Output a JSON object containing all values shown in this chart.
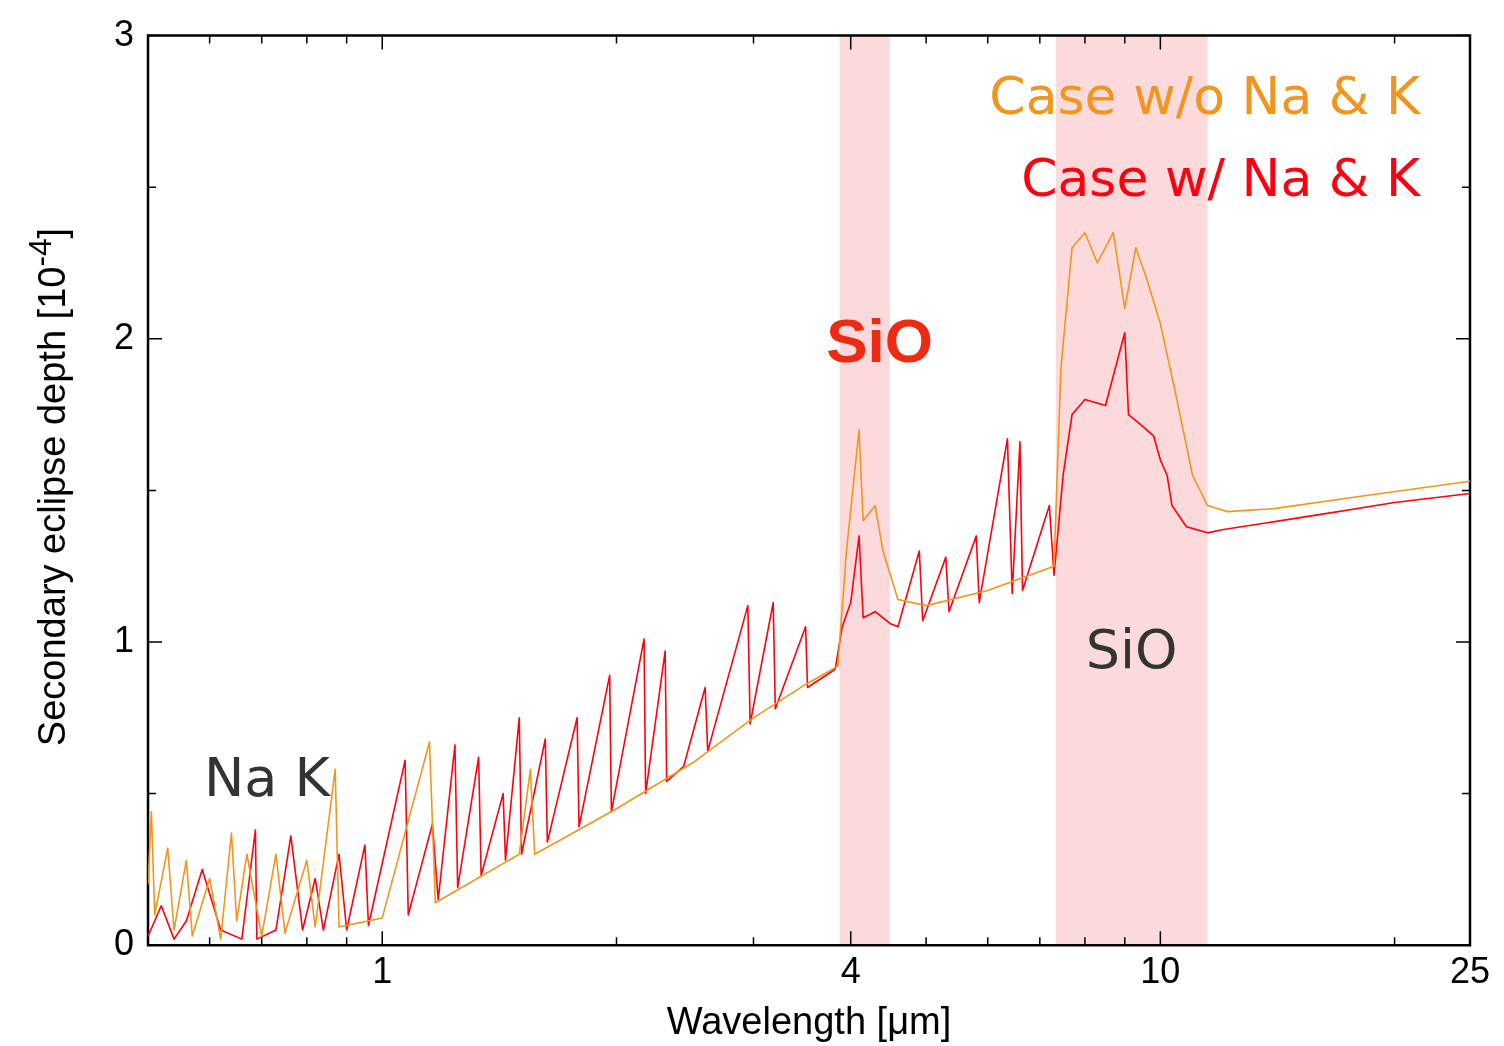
{
  "chart_data": {
    "type": "line",
    "xlabel": "Wavelength [μm]",
    "ylabel": "Secondary eclipse depth [10$^{-4}$]",
    "log": "x",
    "xlim": [
      0.5,
      25
    ],
    "ylim": [
      0,
      3
    ],
    "xticks": [
      {
        "value": 0.6,
        "label": null
      },
      {
        "value": 0.7,
        "label": null
      },
      {
        "value": 0.8,
        "label": null
      },
      {
        "value": 0.9,
        "label": null
      },
      1,
      {
        "value": 2,
        "label": null
      },
      {
        "value": 3,
        "label": null
      },
      4,
      {
        "value": 5,
        "label": null
      },
      {
        "value": 6,
        "label": null
      },
      {
        "value": 7,
        "label": null
      },
      {
        "value": 8,
        "label": null
      },
      {
        "value": 9,
        "label": null
      },
      10,
      {
        "value": 20,
        "label": null
      },
      25
    ],
    "yticks": [
      0,
      {
        "value": 0.5,
        "label": null
      },
      1,
      {
        "value": 1.5,
        "label": null
      },
      2,
      {
        "value": 2.5,
        "label": null
      },
      3
    ],
    "grid": false,
    "legend": "top right",
    "line_style": "solid",
    "marker": "none",
    "bands": [
      {
        "axis": "x",
        "from": 3.87,
        "to": 4.49,
        "color": "#fcd9da",
        "label": "SiO"
      },
      {
        "axis": "x",
        "from": 7.34,
        "to": 11.5,
        "color": "#fcd9da",
        "label": "SiO"
      }
    ],
    "annotations": [
      "Na K"
    ],
    "series": [
      {
        "name": "Case w/o Na & K",
        "color": "#f0961e",
        "x": [
          0.5,
          0.505,
          0.51,
          0.53,
          0.54,
          0.56,
          0.57,
          0.6,
          0.62,
          0.64,
          0.65,
          0.67,
          0.7,
          0.73,
          0.75,
          0.8,
          0.82,
          0.87,
          0.88,
          1.0,
          1.15,
          1.17,
          1.5,
          1.55,
          1.57,
          2.0,
          2.5,
          3.0,
          3.5,
          3.85,
          3.95,
          4.1,
          4.15,
          4.3,
          4.4,
          4.6,
          5.0,
          6.0,
          7.3,
          7.45,
          7.7,
          8.0,
          8.3,
          8.7,
          9.0,
          9.3,
          9.6,
          10.0,
          10.5,
          11.0,
          11.5,
          12.2,
          14,
          18,
          25
        ],
        "values": [
          0.2,
          0.44,
          0.1,
          0.32,
          0.05,
          0.28,
          0.03,
          0.22,
          0.02,
          0.37,
          0.08,
          0.3,
          0.03,
          0.3,
          0.04,
          0.28,
          0.06,
          0.58,
          0.06,
          0.09,
          0.67,
          0.14,
          0.3,
          0.58,
          0.3,
          0.45,
          0.6,
          0.75,
          0.86,
          0.92,
          1.3,
          1.7,
          1.4,
          1.45,
          1.3,
          1.14,
          1.12,
          1.17,
          1.25,
          1.9,
          2.3,
          2.35,
          2.25,
          2.35,
          2.1,
          2.3,
          2.2,
          2.05,
          1.8,
          1.55,
          1.45,
          1.43,
          1.44,
          1.48,
          1.53
        ]
      },
      {
        "name": "Case w/ Na & K",
        "color": "#ff0010",
        "x": [
          0.5,
          0.52,
          0.54,
          0.56,
          0.587,
          0.62,
          0.66,
          0.687,
          0.69,
          0.73,
          0.763,
          0.79,
          0.82,
          0.84,
          0.88,
          0.9,
          0.95,
          0.96,
          1.07,
          1.08,
          1.16,
          1.18,
          1.24,
          1.25,
          1.33,
          1.34,
          1.43,
          1.44,
          1.5,
          1.51,
          1.62,
          1.63,
          1.78,
          1.79,
          1.96,
          1.97,
          2.17,
          2.18,
          2.31,
          2.32,
          2.44,
          2.6,
          2.62,
          2.95,
          2.97,
          3.18,
          3.2,
          3.5,
          3.52,
          3.82,
          3.9,
          4.0,
          4.1,
          4.15,
          4.3,
          4.5,
          4.6,
          4.9,
          4.95,
          5.3,
          5.35,
          5.8,
          5.85,
          6.36,
          6.45,
          6.6,
          6.65,
          7.2,
          7.3,
          7.5,
          7.7,
          8.0,
          8.5,
          9.0,
          9.1,
          9.4,
          9.8,
          10.0,
          10.2,
          10.35,
          10.8,
          11.5,
          12,
          16,
          20,
          25
        ],
        "values": [
          0.03,
          0.13,
          0.02,
          0.08,
          0.25,
          0.05,
          0.02,
          0.38,
          0.02,
          0.05,
          0.36,
          0.05,
          0.22,
          0.05,
          0.3,
          0.05,
          0.33,
          0.065,
          0.61,
          0.1,
          0.4,
          0.15,
          0.66,
          0.19,
          0.62,
          0.23,
          0.5,
          0.28,
          0.75,
          0.3,
          0.68,
          0.34,
          0.75,
          0.39,
          0.89,
          0.44,
          1.01,
          0.5,
          0.97,
          0.54,
          0.59,
          0.85,
          0.64,
          1.12,
          0.73,
          1.13,
          0.78,
          1.05,
          0.85,
          0.91,
          1.05,
          1.13,
          1.35,
          1.08,
          1.1,
          1.06,
          1.05,
          1.3,
          1.07,
          1.28,
          1.1,
          1.35,
          1.13,
          1.67,
          1.16,
          1.66,
          1.17,
          1.45,
          1.22,
          1.55,
          1.75,
          1.8,
          1.78,
          2.02,
          1.75,
          1.72,
          1.68,
          1.6,
          1.55,
          1.45,
          1.38,
          1.36,
          1.37,
          1.42,
          1.46,
          1.49
        ]
      }
    ]
  }
}
